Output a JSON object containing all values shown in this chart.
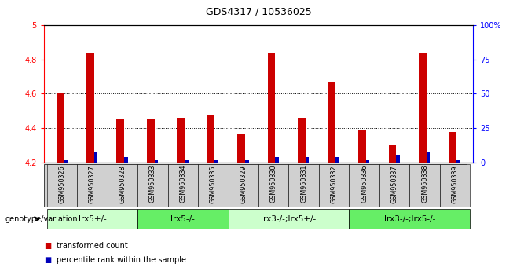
{
  "title": "GDS4317 / 10536025",
  "samples": [
    "GSM950326",
    "GSM950327",
    "GSM950328",
    "GSM950333",
    "GSM950334",
    "GSM950335",
    "GSM950329",
    "GSM950330",
    "GSM950331",
    "GSM950332",
    "GSM950336",
    "GSM950337",
    "GSM950338",
    "GSM950339"
  ],
  "transformed_count": [
    4.6,
    4.84,
    4.45,
    4.45,
    4.46,
    4.48,
    4.37,
    4.84,
    4.46,
    4.67,
    4.39,
    4.3,
    4.84,
    4.38
  ],
  "percentile_rank": [
    2,
    8,
    4,
    2,
    2,
    2,
    2,
    4,
    4,
    4,
    2,
    6,
    8,
    2
  ],
  "ymin": 4.2,
  "ymax": 5.0,
  "y_ticks": [
    4.2,
    4.4,
    4.6,
    4.8,
    5.0
  ],
  "y_tick_labels": [
    "4.2",
    "4.4",
    "4.6",
    "4.8",
    "5"
  ],
  "right_yticks": [
    0,
    25,
    50,
    75,
    100
  ],
  "right_ytick_labels": [
    "0",
    "25",
    "50",
    "75",
    "100%"
  ],
  "bar_color_red": "#cc0000",
  "bar_color_blue": "#0000bb",
  "groups": [
    {
      "label": "lrx5+/-",
      "start": 0,
      "end": 3,
      "color": "#ccffcc"
    },
    {
      "label": "lrx5-/-",
      "start": 3,
      "end": 6,
      "color": "#66ee66"
    },
    {
      "label": "lrx3-/-;lrx5+/-",
      "start": 6,
      "end": 10,
      "color": "#ccffcc"
    },
    {
      "label": "lrx3-/-;lrx5-/-",
      "start": 10,
      "end": 14,
      "color": "#66ee66"
    }
  ],
  "xlabel_group": "genotype/variation",
  "legend_red": "transformed count",
  "legend_blue": "percentile rank within the sample",
  "bar_base": 4.2,
  "red_bar_width": 0.25,
  "blue_bar_width": 0.12
}
